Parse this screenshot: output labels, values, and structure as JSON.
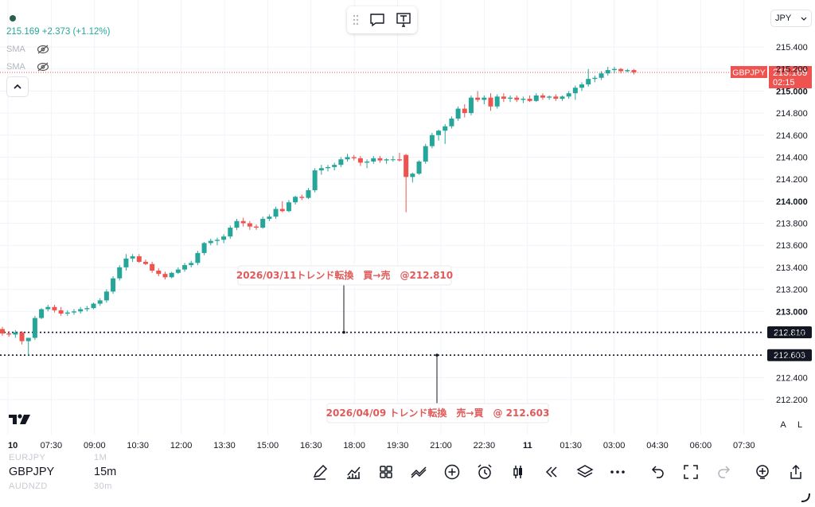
{
  "legend": {
    "price": "215.169",
    "change": "+2.373 (+1.12%)",
    "indicators": [
      "SMA",
      "SMA"
    ]
  },
  "currency": "JPY",
  "chart_data": {
    "type": "candlestick",
    "symbol": "GBPJPY",
    "ylim": [
      212.05,
      215.55
    ],
    "y_ticks": [
      "215.400",
      "215.200",
      "215.000",
      "214.800",
      "214.600",
      "214.400",
      "214.200",
      "214.000",
      "213.800",
      "213.600",
      "213.400",
      "213.200",
      "213.000",
      "212.800",
      "212.600",
      "212.400",
      "212.200"
    ],
    "y_ticks_bold": [
      "215.000",
      "214.000",
      "213.000"
    ],
    "x_ticks": [
      "10",
      "07:30",
      "09:00",
      "10:30",
      "12:00",
      "13:30",
      "15:00",
      "16:30",
      "18:00",
      "19:30",
      "21:00",
      "22:30",
      "11",
      "01:30",
      "03:00",
      "04:30",
      "06:00",
      "07:30"
    ],
    "candles": [
      [
        212.84,
        212.86,
        212.78,
        212.8
      ],
      [
        212.8,
        212.82,
        212.77,
        212.79
      ],
      [
        212.79,
        212.83,
        212.76,
        212.81
      ],
      [
        212.81,
        212.82,
        212.7,
        212.73
      ],
      [
        212.73,
        212.76,
        212.6,
        212.76
      ],
      [
        212.76,
        212.96,
        212.74,
        212.94
      ],
      [
        212.94,
        213.03,
        212.93,
        213.02
      ],
      [
        213.02,
        213.06,
        213.0,
        213.04
      ],
      [
        213.04,
        213.06,
        212.99,
        213.01
      ],
      [
        213.01,
        213.04,
        212.96,
        212.98
      ],
      [
        212.98,
        213.01,
        212.96,
        212.99
      ],
      [
        212.99,
        213.02,
        212.97,
        213.0
      ],
      [
        213.0,
        213.04,
        212.98,
        213.02
      ],
      [
        213.02,
        213.05,
        213.0,
        213.03
      ],
      [
        213.03,
        213.08,
        213.02,
        213.07
      ],
      [
        213.07,
        213.12,
        213.05,
        213.1
      ],
      [
        213.1,
        213.2,
        213.08,
        213.18
      ],
      [
        213.18,
        213.32,
        213.16,
        213.3
      ],
      [
        213.3,
        213.42,
        213.28,
        213.4
      ],
      [
        213.4,
        213.52,
        213.37,
        213.48
      ],
      [
        213.48,
        213.52,
        213.45,
        213.5
      ],
      [
        213.5,
        213.52,
        213.44,
        213.45
      ],
      [
        213.45,
        213.47,
        213.42,
        213.43
      ],
      [
        213.43,
        213.45,
        213.35,
        213.37
      ],
      [
        213.37,
        213.39,
        213.32,
        213.34
      ],
      [
        213.34,
        213.36,
        213.29,
        213.31
      ],
      [
        213.31,
        213.36,
        213.3,
        213.35
      ],
      [
        213.35,
        213.4,
        213.34,
        213.38
      ],
      [
        213.38,
        213.44,
        213.36,
        213.42
      ],
      [
        213.42,
        213.46,
        213.4,
        213.44
      ],
      [
        213.44,
        213.55,
        213.42,
        213.53
      ],
      [
        213.53,
        213.63,
        213.51,
        213.62
      ],
      [
        213.62,
        213.66,
        213.6,
        213.64
      ],
      [
        213.64,
        213.67,
        213.6,
        213.65
      ],
      [
        213.65,
        213.7,
        213.62,
        213.68
      ],
      [
        213.68,
        213.78,
        213.66,
        213.76
      ],
      [
        213.76,
        213.84,
        213.74,
        213.82
      ],
      [
        213.82,
        213.85,
        213.77,
        213.8
      ],
      [
        213.8,
        213.82,
        213.74,
        213.77
      ],
      [
        213.77,
        213.79,
        213.74,
        213.76
      ],
      [
        213.76,
        213.86,
        213.75,
        213.84
      ],
      [
        213.84,
        213.88,
        213.82,
        213.86
      ],
      [
        213.86,
        213.95,
        213.84,
        213.93
      ],
      [
        213.93,
        214.0,
        213.9,
        213.91
      ],
      [
        213.91,
        214.01,
        213.9,
        213.99
      ],
      [
        213.99,
        214.05,
        213.97,
        214.04
      ],
      [
        214.04,
        214.06,
        214.01,
        214.03
      ],
      [
        214.03,
        214.12,
        214.02,
        214.1
      ],
      [
        214.1,
        214.3,
        214.08,
        214.28
      ],
      [
        214.28,
        214.33,
        214.24,
        214.3
      ],
      [
        214.3,
        214.33,
        214.27,
        214.31
      ],
      [
        214.31,
        214.35,
        214.28,
        214.33
      ],
      [
        214.33,
        214.4,
        214.31,
        214.38
      ],
      [
        214.38,
        214.43,
        214.36,
        214.4
      ],
      [
        214.4,
        214.42,
        214.37,
        214.39
      ],
      [
        214.39,
        214.41,
        214.32,
        214.35
      ],
      [
        214.35,
        214.38,
        214.3,
        214.36
      ],
      [
        214.36,
        214.41,
        214.34,
        214.39
      ],
      [
        214.39,
        214.41,
        214.35,
        214.37
      ],
      [
        214.37,
        214.39,
        214.34,
        214.38
      ],
      [
        214.38,
        214.41,
        214.36,
        214.38
      ],
      [
        214.38,
        214.44,
        214.36,
        214.37
      ],
      [
        214.42,
        214.43,
        213.9,
        214.22
      ],
      [
        214.22,
        214.26,
        214.17,
        214.25
      ],
      [
        214.25,
        214.37,
        214.24,
        214.36
      ],
      [
        214.36,
        214.52,
        214.34,
        214.5
      ],
      [
        214.5,
        214.62,
        214.48,
        214.6
      ],
      [
        214.6,
        214.65,
        214.55,
        214.64
      ],
      [
        214.64,
        214.7,
        214.52,
        214.68
      ],
      [
        214.68,
        214.77,
        214.66,
        214.75
      ],
      [
        214.75,
        214.86,
        214.73,
        214.84
      ],
      [
        214.84,
        214.88,
        214.76,
        214.8
      ],
      [
        214.8,
        214.96,
        214.78,
        214.94
      ],
      [
        214.94,
        215.0,
        214.9,
        214.92
      ],
      [
        214.92,
        214.96,
        214.88,
        214.94
      ],
      [
        214.94,
        214.98,
        214.82,
        214.86
      ],
      [
        214.86,
        214.97,
        214.84,
        214.95
      ],
      [
        214.95,
        214.98,
        214.9,
        214.93
      ],
      [
        214.93,
        214.96,
        214.9,
        214.94
      ],
      [
        214.94,
        214.96,
        214.9,
        214.92
      ],
      [
        214.92,
        214.95,
        214.89,
        214.93
      ],
      [
        214.93,
        214.96,
        214.9,
        214.91
      ],
      [
        214.91,
        214.98,
        214.9,
        214.96
      ],
      [
        214.96,
        214.98,
        214.92,
        214.94
      ],
      [
        214.94,
        214.96,
        214.92,
        214.95
      ],
      [
        214.95,
        214.97,
        214.91,
        214.93
      ],
      [
        214.93,
        214.96,
        214.91,
        214.95
      ],
      [
        214.95,
        215.0,
        214.93,
        214.98
      ],
      [
        214.98,
        215.05,
        214.92,
        215.03
      ],
      [
        215.03,
        215.08,
        215.0,
        215.06
      ],
      [
        215.06,
        215.2,
        215.04,
        215.11
      ],
      [
        215.11,
        215.14,
        215.08,
        215.12
      ],
      [
        215.12,
        215.18,
        215.1,
        215.16
      ],
      [
        215.16,
        215.22,
        215.14,
        215.19
      ],
      [
        215.19,
        215.22,
        215.16,
        215.2
      ],
      [
        215.2,
        215.21,
        215.16,
        215.18
      ],
      [
        215.18,
        215.2,
        215.17,
        215.19
      ],
      [
        215.19,
        215.2,
        215.15,
        215.17
      ]
    ],
    "current_price": {
      "label": "GBPJPY",
      "value": "215.169",
      "countdown": "02:15"
    },
    "annotations": [
      {
        "text": "2026/03/11トレンド転換　買→売　@212.810",
        "price": "212.810"
      },
      {
        "text": "2026/04/09 トレンド転換　売→買　@ 212.603",
        "price": "212.603"
      }
    ]
  },
  "axis_buttons": {
    "auto": "A",
    "log": "L"
  },
  "symbols": {
    "above": "EURJPY",
    "above_tf": "1M",
    "current": "GBPJPY",
    "current_tf": "15m",
    "below": "AUDNZD",
    "below_tf": "30m"
  },
  "colors": {
    "up": "#26a69a",
    "down": "#ef5350",
    "price_label": "#ef5350",
    "annotation_text": "#e05a5a"
  }
}
